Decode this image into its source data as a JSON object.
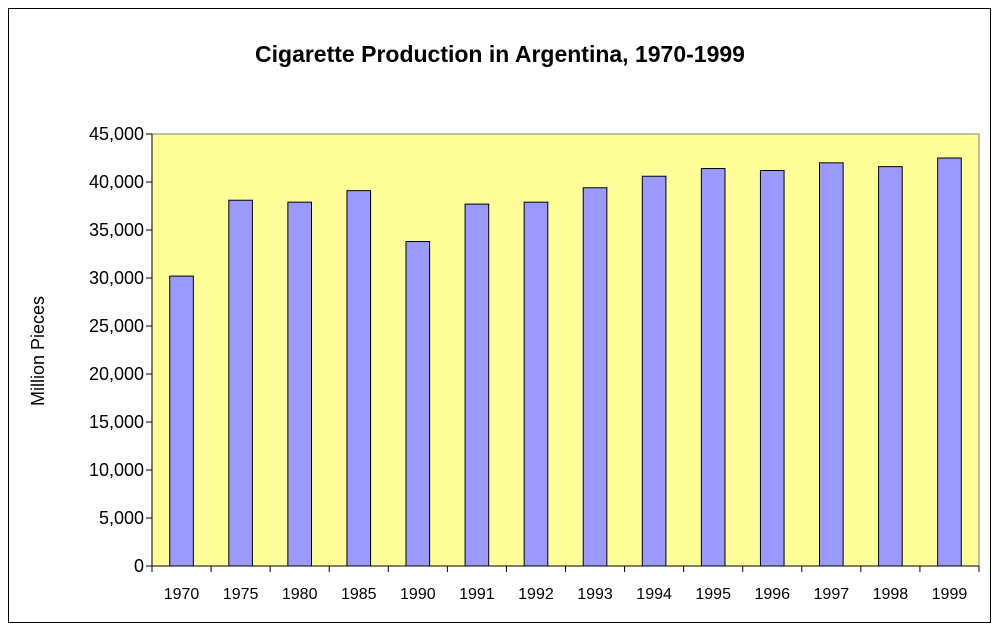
{
  "chart_data": {
    "type": "bar",
    "title": "Cigarette Production in Argentina, 1970-1999",
    "xlabel": "",
    "ylabel": "Million Pieces",
    "categories": [
      "1970",
      "1975",
      "1980",
      "1985",
      "1990",
      "1991",
      "1992",
      "1993",
      "1994",
      "1995",
      "1996",
      "1997",
      "1998",
      "1999"
    ],
    "values": [
      30200,
      38100,
      37900,
      39100,
      33800,
      37700,
      37900,
      39400,
      40600,
      41400,
      41200,
      42000,
      41600,
      42500
    ],
    "ylim": [
      0,
      45000
    ],
    "yticks": [
      "0",
      "5,000",
      "10,000",
      "15,000",
      "20,000",
      "25,000",
      "30,000",
      "35,000",
      "40,000",
      "45,000"
    ],
    "grid": false,
    "legend": false,
    "colors": {
      "plot_background": "#ffff99",
      "bar_fill": "#9999ff",
      "bar_stroke": "#000000"
    }
  }
}
